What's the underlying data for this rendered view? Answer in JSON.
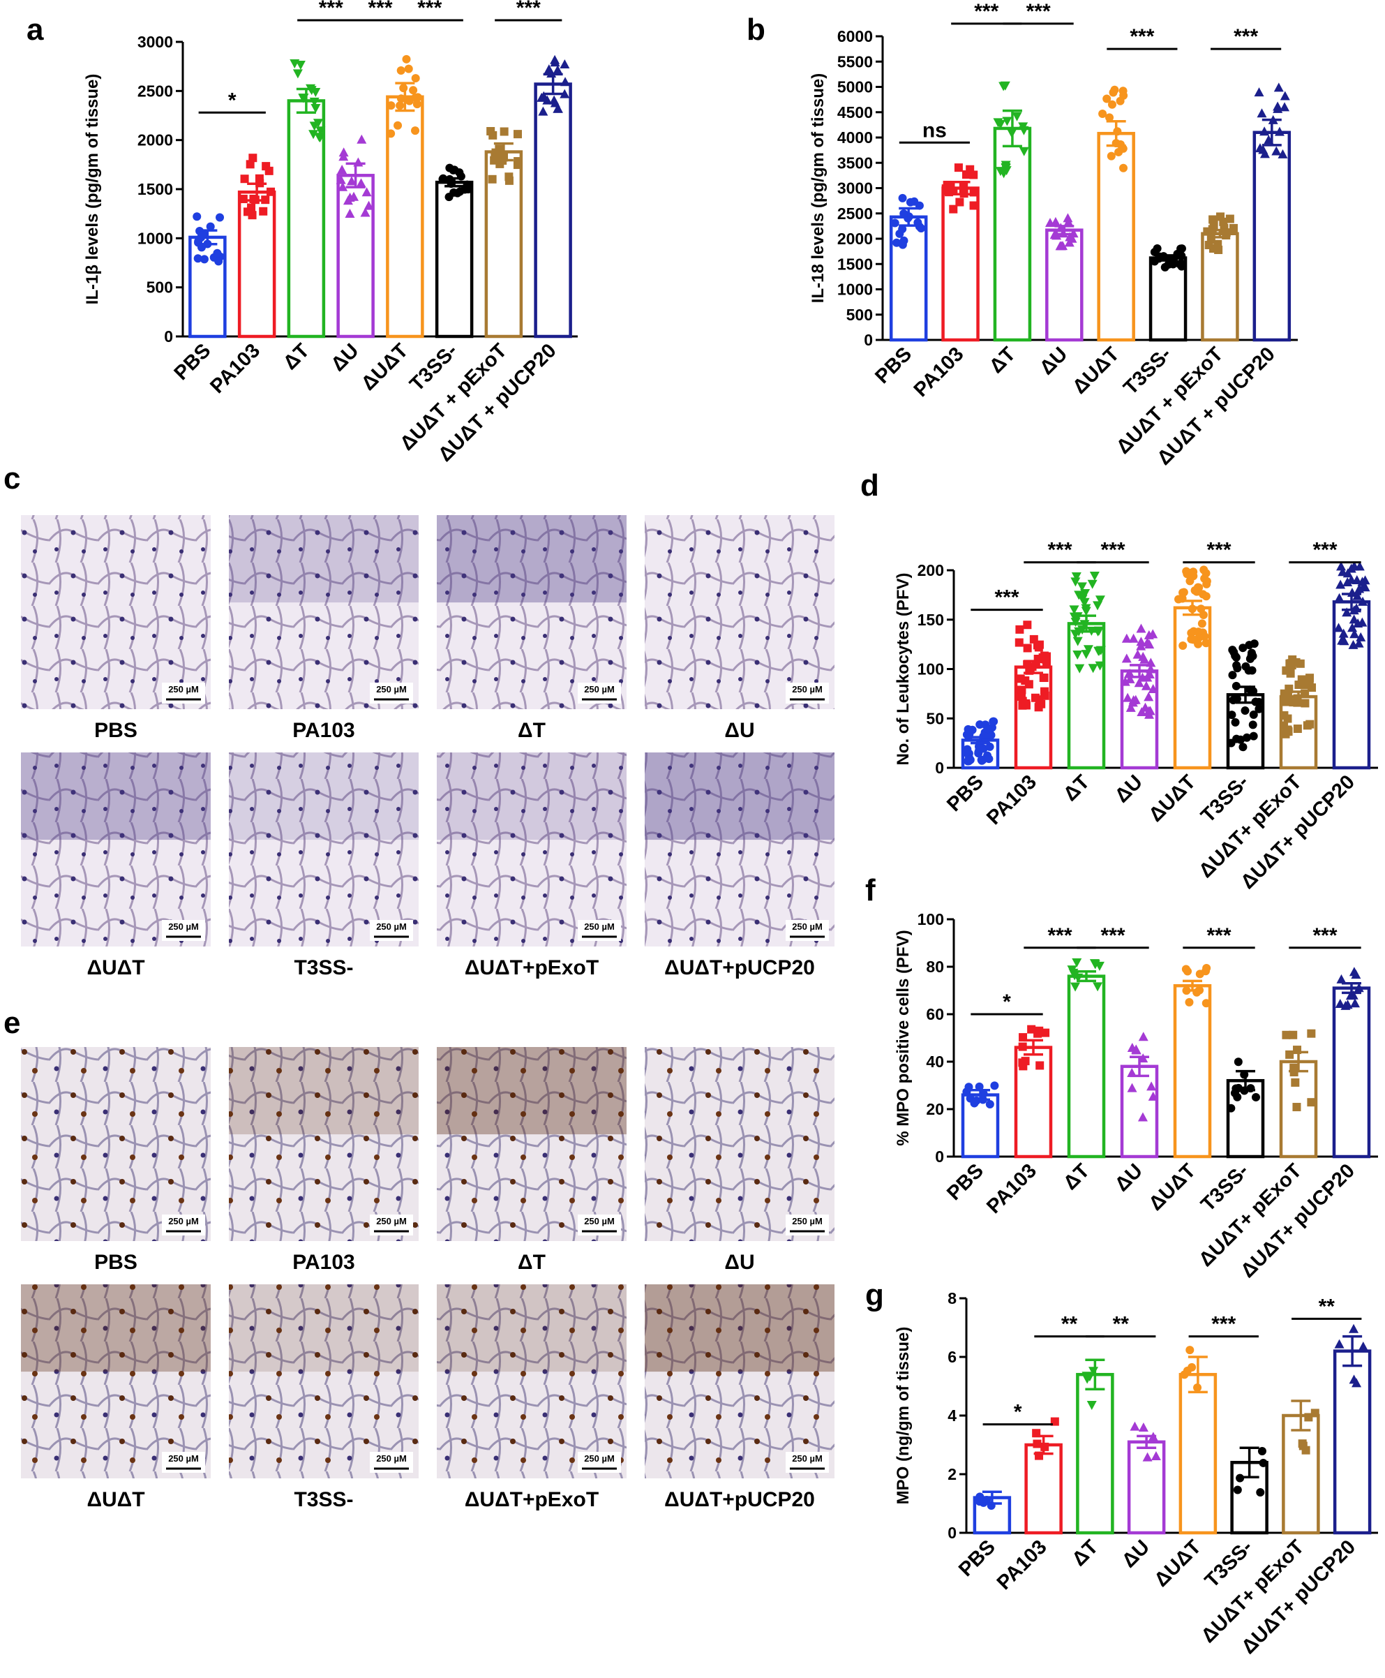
{
  "groups": [
    "PBS",
    "PA103",
    "ΔT",
    "ΔU",
    "ΔUΔT",
    "T3SS-",
    "ΔUΔT + pExoT",
    "ΔUΔT + pUCP20"
  ],
  "colors": [
    "#1f3fe0",
    "#ee1c24",
    "#22b422",
    "#a43ad4",
    "#f7941d",
    "#000000",
    "#a87a32",
    "#1b1f8c"
  ],
  "charts": [
    {
      "letter": "a",
      "categories": [
        "PBS",
        "PA103",
        "ΔT",
        "ΔU",
        "ΔUΔT",
        "T3SS-",
        "ΔUΔT + pExoT",
        "ΔUΔT + pUCP20"
      ],
      "ylabel": "IL-1β levels (pg/gm of tissue)",
      "ylim": [
        0,
        3000
      ],
      "ticks": [
        0,
        500,
        1000,
        1500,
        2000,
        2500,
        3000
      ],
      "values": [
        1010,
        1470,
        2400,
        1640,
        2440,
        1570,
        1880,
        2570
      ],
      "errors": [
        70,
        85,
        120,
        120,
        140,
        40,
        85,
        100
      ],
      "spread": [
        260,
        350,
        400,
        400,
        400,
        150,
        300,
        300
      ],
      "n": 16,
      "marker": "circle",
      "shape": "mixed",
      "comparisons": [
        {
          "from": 0,
          "to": 1,
          "label": "*",
          "level": 2280
        },
        {
          "from": 2,
          "to": 3,
          "label": "***",
          "level": 3220
        },
        {
          "from": 3,
          "to": 4,
          "label": "***",
          "level": 3220
        },
        {
          "from": 4,
          "to": 5,
          "label": "***",
          "level": 3220
        },
        {
          "from": 6,
          "to": 7,
          "label": "***",
          "level": 3220
        }
      ]
    },
    {
      "letter": "b",
      "categories": [
        "PBS",
        "PA103",
        "ΔT",
        "ΔU",
        "ΔUΔT",
        "T3SS-",
        "ΔUΔT + pExoT",
        "ΔUΔT + pUCP20"
      ],
      "ylabel": "IL-18 levels (pg/gm of tissue)",
      "ylim": [
        0,
        6000
      ],
      "ticks": [
        0,
        500,
        1000,
        1500,
        2000,
        2500,
        3000,
        3500,
        4000,
        4500,
        5000,
        5500,
        6000
      ],
      "values": [
        2430,
        3000,
        4180,
        2170,
        4080,
        1620,
        2100,
        4100
      ],
      "errors": [
        170,
        120,
        350,
        80,
        240,
        50,
        70,
        250
      ],
      "spread": [
        550,
        450,
        900,
        350,
        900,
        200,
        350,
        900
      ],
      "n": 16,
      "marker": "mixed",
      "comparisons": [
        {
          "from": 0,
          "to": 1,
          "label": "ns",
          "level": 3900
        },
        {
          "from": 1,
          "to": 2,
          "label": "***",
          "level": 6250
        },
        {
          "from": 2,
          "to": 3,
          "label": "***",
          "level": 6250
        },
        {
          "from": 4,
          "to": 5,
          "label": "***",
          "level": 5750
        },
        {
          "from": 6,
          "to": 7,
          "label": "***",
          "level": 5750
        }
      ]
    },
    {
      "letter": "d",
      "categories": [
        "PBS",
        "PA103",
        "ΔT",
        "ΔU",
        "ΔUΔT",
        "T3SS-",
        "ΔUΔT+ pExoT",
        "ΔUΔT+ pUCP20"
      ],
      "ylabel": "No. of Leukocytes (PFV)",
      "ylim": [
        0,
        200
      ],
      "ticks": [
        0,
        50,
        100,
        150,
        200
      ],
      "values": [
        28,
        102,
        146,
        98,
        162,
        74,
        72,
        168
      ],
      "errors": [
        3,
        6,
        8,
        6,
        7,
        8,
        5,
        8
      ],
      "spread": [
        22,
        45,
        50,
        45,
        40,
        55,
        40,
        45
      ],
      "n": 36,
      "marker": "mixed",
      "comparisons": [
        {
          "from": 0,
          "to": 1,
          "label": "***",
          "level": 160
        },
        {
          "from": 1,
          "to": 2,
          "label": "***",
          "level": 208
        },
        {
          "from": 2,
          "to": 3,
          "label": "***",
          "level": 208
        },
        {
          "from": 4,
          "to": 5,
          "label": "***",
          "level": 208
        },
        {
          "from": 6,
          "to": 7,
          "label": "***",
          "level": 208
        }
      ]
    },
    {
      "letter": "f",
      "categories": [
        "PBS",
        "PA103",
        "ΔT",
        "ΔU",
        "ΔUΔT",
        "T3SS-",
        "ΔUΔT+ pExoT",
        "ΔUΔT+ pUCP20"
      ],
      "ylabel": "% MPO positive cells (PFV)",
      "ylim": [
        0,
        100
      ],
      "ticks": [
        0,
        20,
        40,
        60,
        80,
        100
      ],
      "values": [
        26,
        46,
        76,
        38,
        72,
        32,
        40,
        71
      ],
      "errors": [
        2,
        3,
        2,
        4,
        2,
        4,
        4,
        2
      ],
      "spread": [
        4,
        8,
        6,
        22,
        8,
        12,
        22,
        8
      ],
      "n": 10,
      "marker": "mixed",
      "comparisons": [
        {
          "from": 0,
          "to": 1,
          "label": "*",
          "level": 60
        },
        {
          "from": 1,
          "to": 2,
          "label": "***",
          "level": 88
        },
        {
          "from": 2,
          "to": 3,
          "label": "***",
          "level": 88
        },
        {
          "from": 4,
          "to": 5,
          "label": "***",
          "level": 88
        },
        {
          "from": 6,
          "to": 7,
          "label": "***",
          "level": 88
        }
      ]
    },
    {
      "letter": "g",
      "categories": [
        "PBS",
        "PA103",
        "ΔT",
        "ΔU",
        "ΔUΔT",
        "T3SS-",
        "ΔUΔT+ pExoT",
        "ΔUΔT+ pUCP20"
      ],
      "ylabel": "MPO (ng/gm of tissue)",
      "ylim": [
        0,
        8
      ],
      "ticks": [
        0,
        2,
        4,
        6,
        8
      ],
      "values": [
        1.2,
        3.0,
        5.4,
        3.1,
        5.4,
        2.4,
        4.0,
        6.2
      ],
      "errors": [
        0.2,
        0.3,
        0.5,
        0.2,
        0.6,
        0.5,
        0.5,
        0.5
      ],
      "spread": [
        0.5,
        0.9,
        1.2,
        0.6,
        1.3,
        1.2,
        1.2,
        1.3
      ],
      "n": 5,
      "marker": "mixed",
      "comparisons": [
        {
          "from": 0,
          "to": 1,
          "label": "*",
          "level": 3.7
        },
        {
          "from": 1,
          "to": 2,
          "label": "**",
          "level": 6.7
        },
        {
          "from": 2,
          "to": 3,
          "label": "**",
          "level": 6.7
        },
        {
          "from": 4,
          "to": 5,
          "label": "***",
          "level": 6.7
        },
        {
          "from": 6,
          "to": 7,
          "label": "**",
          "level": 7.3
        }
      ]
    }
  ],
  "micrographs": {
    "c": {
      "letter": "c",
      "stain": "he",
      "labels": [
        "PBS",
        "PA103",
        "ΔT",
        "ΔU",
        "ΔUΔT",
        "T3SS-",
        "ΔUΔT+pExoT",
        "ΔUΔT+pUCP20"
      ],
      "scale": "250 µM"
    },
    "e": {
      "letter": "e",
      "stain": "mpo",
      "labels": [
        "PBS",
        "PA103",
        "ΔT",
        "ΔU",
        "ΔUΔT",
        "T3SS-",
        "ΔUΔT+pExoT",
        "ΔUΔT+pUCP20"
      ],
      "scale": "250 µM"
    }
  }
}
